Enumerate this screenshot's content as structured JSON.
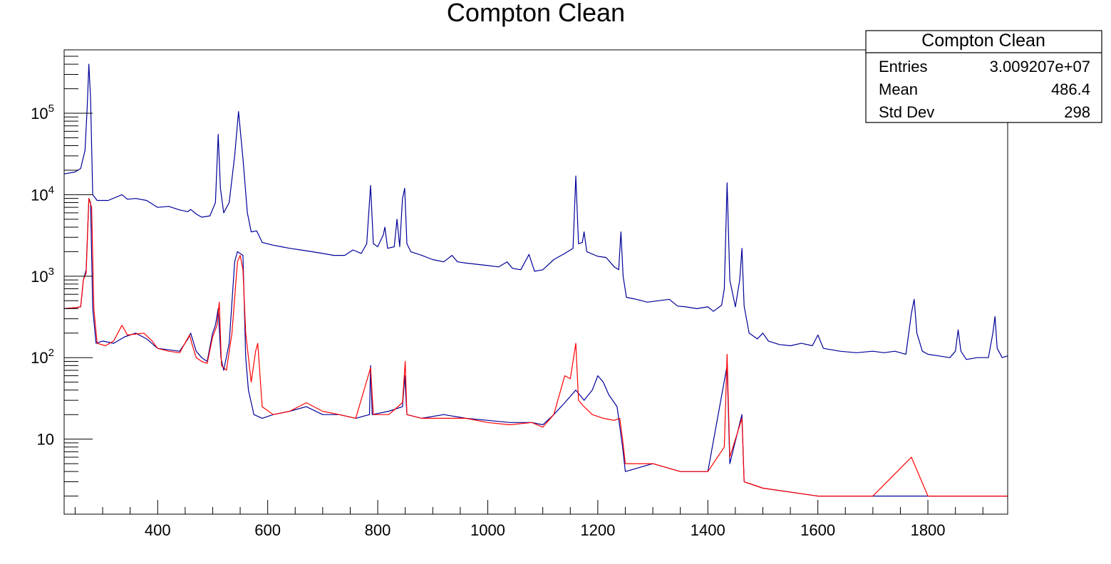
{
  "chart_data": {
    "type": "line",
    "title": "Compton Clean",
    "xlabel": "",
    "ylabel": "",
    "xlim": [
      230,
      1945
    ],
    "ylim": [
      1.2,
      600000
    ],
    "y_scale": "log",
    "x_ticks": [
      400,
      600,
      800,
      1000,
      1200,
      1400,
      1600,
      1800
    ],
    "x_tick_labels": [
      "400",
      "600",
      "800",
      "1000",
      "1200",
      "1400",
      "1600",
      "1800"
    ],
    "y_ticks": [
      10,
      100,
      1000,
      10000,
      100000
    ],
    "y_tick_labels": [
      {
        "base": "10",
        "exp": ""
      },
      {
        "base": "10",
        "exp": "2"
      },
      {
        "base": "10",
        "exp": "3"
      },
      {
        "base": "10",
        "exp": "4"
      },
      {
        "base": "10",
        "exp": "5"
      }
    ],
    "stats_box": {
      "title": "Compton Clean",
      "rows": [
        {
          "label": "Entries",
          "value": "3.009207e+07"
        },
        {
          "label": "Mean",
          "value": "486.4"
        },
        {
          "label": "Std Dev",
          "value": "298"
        }
      ]
    },
    "series": [
      {
        "color": "#000099",
        "points": [
          [
            230,
            18000
          ],
          [
            250,
            19000
          ],
          [
            260,
            21000
          ],
          [
            268,
            35000
          ],
          [
            272,
            120000
          ],
          [
            275,
            400000
          ],
          [
            278,
            150000
          ],
          [
            282,
            10000
          ],
          [
            290,
            8500
          ],
          [
            310,
            8500
          ],
          [
            335,
            10000
          ],
          [
            345,
            8800
          ],
          [
            360,
            9000
          ],
          [
            380,
            8500
          ],
          [
            400,
            7000
          ],
          [
            420,
            7200
          ],
          [
            440,
            6500
          ],
          [
            455,
            6200
          ],
          [
            460,
            6600
          ],
          [
            470,
            5800
          ],
          [
            480,
            5300
          ],
          [
            495,
            5500
          ],
          [
            505,
            8000
          ],
          [
            510,
            55000
          ],
          [
            514,
            12000
          ],
          [
            520,
            6000
          ],
          [
            530,
            8000
          ],
          [
            540,
            30000
          ],
          [
            547,
            105000
          ],
          [
            555,
            28000
          ],
          [
            563,
            6000
          ],
          [
            570,
            3500
          ],
          [
            580,
            3600
          ],
          [
            590,
            2600
          ],
          [
            610,
            2400
          ],
          [
            625,
            2300
          ],
          [
            640,
            2200
          ],
          [
            660,
            2100
          ],
          [
            680,
            2000
          ],
          [
            700,
            1900
          ],
          [
            720,
            1800
          ],
          [
            740,
            1800
          ],
          [
            755,
            2100
          ],
          [
            770,
            1900
          ],
          [
            780,
            2500
          ],
          [
            787,
            13000
          ],
          [
            792,
            2500
          ],
          [
            800,
            2300
          ],
          [
            810,
            3200
          ],
          [
            813,
            4000
          ],
          [
            818,
            2200
          ],
          [
            830,
            2300
          ],
          [
            835,
            5000
          ],
          [
            840,
            2300
          ],
          [
            845,
            9000
          ],
          [
            849,
            12000
          ],
          [
            853,
            2500
          ],
          [
            860,
            2000
          ],
          [
            880,
            1800
          ],
          [
            900,
            1600
          ],
          [
            920,
            1500
          ],
          [
            935,
            1800
          ],
          [
            945,
            1500
          ],
          [
            960,
            1450
          ],
          [
            980,
            1400
          ],
          [
            1000,
            1350
          ],
          [
            1020,
            1300
          ],
          [
            1035,
            1500
          ],
          [
            1045,
            1250
          ],
          [
            1060,
            1200
          ],
          [
            1075,
            1850
          ],
          [
            1085,
            1150
          ],
          [
            1100,
            1200
          ],
          [
            1120,
            1600
          ],
          [
            1140,
            1900
          ],
          [
            1155,
            2200
          ],
          [
            1160,
            17000
          ],
          [
            1165,
            2500
          ],
          [
            1172,
            2600
          ],
          [
            1175,
            3500
          ],
          [
            1180,
            2000
          ],
          [
            1200,
            1750
          ],
          [
            1215,
            1700
          ],
          [
            1230,
            1300
          ],
          [
            1238,
            1200
          ],
          [
            1242,
            3500
          ],
          [
            1246,
            1000
          ],
          [
            1252,
            550
          ],
          [
            1270,
            520
          ],
          [
            1290,
            480
          ],
          [
            1310,
            500
          ],
          [
            1330,
            520
          ],
          [
            1345,
            430
          ],
          [
            1360,
            420
          ],
          [
            1380,
            400
          ],
          [
            1400,
            420
          ],
          [
            1410,
            370
          ],
          [
            1425,
            440
          ],
          [
            1430,
            700
          ],
          [
            1435,
            14000
          ],
          [
            1440,
            900
          ],
          [
            1450,
            420
          ],
          [
            1458,
            900
          ],
          [
            1462,
            2200
          ],
          [
            1466,
            430
          ],
          [
            1475,
            200
          ],
          [
            1490,
            170
          ],
          [
            1500,
            200
          ],
          [
            1510,
            160
          ],
          [
            1530,
            145
          ],
          [
            1550,
            140
          ],
          [
            1570,
            150
          ],
          [
            1590,
            140
          ],
          [
            1600,
            190
          ],
          [
            1610,
            130
          ],
          [
            1640,
            120
          ],
          [
            1670,
            115
          ],
          [
            1700,
            120
          ],
          [
            1720,
            115
          ],
          [
            1740,
            120
          ],
          [
            1760,
            110
          ],
          [
            1770,
            350
          ],
          [
            1775,
            520
          ],
          [
            1780,
            200
          ],
          [
            1790,
            120
          ],
          [
            1800,
            110
          ],
          [
            1820,
            105
          ],
          [
            1840,
            100
          ],
          [
            1850,
            120
          ],
          [
            1855,
            220
          ],
          [
            1860,
            120
          ],
          [
            1870,
            95
          ],
          [
            1890,
            100
          ],
          [
            1910,
            100
          ],
          [
            1918,
            200
          ],
          [
            1922,
            320
          ],
          [
            1926,
            130
          ],
          [
            1935,
            100
          ],
          [
            1945,
            105
          ]
        ]
      },
      {
        "color": "#000099",
        "points": [
          [
            230,
            400
          ],
          [
            250,
            410
          ],
          [
            260,
            420
          ],
          [
            265,
            900
          ],
          [
            270,
            1200
          ],
          [
            275,
            9000
          ],
          [
            278,
            8000
          ],
          [
            282,
            400
          ],
          [
            288,
            150
          ],
          [
            300,
            160
          ],
          [
            320,
            150
          ],
          [
            340,
            180
          ],
          [
            360,
            200
          ],
          [
            380,
            170
          ],
          [
            400,
            130
          ],
          [
            420,
            125
          ],
          [
            440,
            120
          ],
          [
            455,
            170
          ],
          [
            460,
            200
          ],
          [
            470,
            120
          ],
          [
            480,
            100
          ],
          [
            490,
            90
          ],
          [
            500,
            200
          ],
          [
            505,
            250
          ],
          [
            510,
            400
          ],
          [
            515,
            100
          ],
          [
            520,
            70
          ],
          [
            530,
            150
          ],
          [
            540,
            1500
          ],
          [
            545,
            2000
          ],
          [
            555,
            1800
          ],
          [
            560,
            100
          ],
          [
            565,
            40
          ],
          [
            575,
            20
          ],
          [
            590,
            18
          ],
          [
            610,
            20
          ],
          [
            640,
            22
          ],
          [
            670,
            25
          ],
          [
            700,
            20
          ],
          [
            730,
            20
          ],
          [
            760,
            18
          ],
          [
            785,
            20
          ],
          [
            787,
            80
          ],
          [
            790,
            20
          ],
          [
            820,
            22
          ],
          [
            845,
            25
          ],
          [
            849,
            60
          ],
          [
            853,
            20
          ],
          [
            880,
            18
          ],
          [
            920,
            20
          ],
          [
            960,
            18
          ],
          [
            1000,
            17
          ],
          [
            1040,
            16
          ],
          [
            1080,
            16
          ],
          [
            1100,
            15
          ],
          [
            1120,
            20
          ],
          [
            1140,
            28
          ],
          [
            1160,
            40
          ],
          [
            1175,
            30
          ],
          [
            1190,
            40
          ],
          [
            1200,
            60
          ],
          [
            1210,
            50
          ],
          [
            1220,
            35
          ],
          [
            1235,
            25
          ],
          [
            1245,
            8
          ],
          [
            1250,
            4
          ],
          [
            1300,
            5
          ],
          [
            1350,
            4
          ],
          [
            1400,
            4
          ],
          [
            1435,
            80
          ],
          [
            1440,
            5
          ],
          [
            1462,
            20
          ],
          [
            1466,
            3
          ],
          [
            1500,
            2.5
          ],
          [
            1600,
            2
          ],
          [
            1700,
            2
          ],
          [
            1800,
            2
          ],
          [
            1900,
            2
          ],
          [
            1945,
            2
          ]
        ]
      },
      {
        "color": "#ff0000",
        "points": [
          [
            230,
            400
          ],
          [
            250,
            410
          ],
          [
            260,
            420
          ],
          [
            265,
            900
          ],
          [
            270,
            1100
          ],
          [
            275,
            9000
          ],
          [
            280,
            7000
          ],
          [
            284,
            400
          ],
          [
            290,
            150
          ],
          [
            305,
            140
          ],
          [
            320,
            160
          ],
          [
            335,
            250
          ],
          [
            345,
            190
          ],
          [
            360,
            195
          ],
          [
            375,
            200
          ],
          [
            390,
            160
          ],
          [
            400,
            130
          ],
          [
            420,
            120
          ],
          [
            440,
            115
          ],
          [
            458,
            190
          ],
          [
            462,
            150
          ],
          [
            470,
            100
          ],
          [
            480,
            90
          ],
          [
            490,
            85
          ],
          [
            500,
            180
          ],
          [
            508,
            250
          ],
          [
            512,
            480
          ],
          [
            516,
            80
          ],
          [
            525,
            70
          ],
          [
            535,
            200
          ],
          [
            545,
            1500
          ],
          [
            550,
            1800
          ],
          [
            555,
            1200
          ],
          [
            560,
            200
          ],
          [
            570,
            50
          ],
          [
            578,
            120
          ],
          [
            582,
            150
          ],
          [
            590,
            25
          ],
          [
            610,
            20
          ],
          [
            640,
            22
          ],
          [
            670,
            28
          ],
          [
            700,
            22
          ],
          [
            730,
            20
          ],
          [
            760,
            18
          ],
          [
            787,
            75
          ],
          [
            792,
            20
          ],
          [
            820,
            20
          ],
          [
            845,
            28
          ],
          [
            850,
            90
          ],
          [
            853,
            20
          ],
          [
            880,
            18
          ],
          [
            920,
            18
          ],
          [
            960,
            18
          ],
          [
            1000,
            16
          ],
          [
            1040,
            15
          ],
          [
            1080,
            16
          ],
          [
            1100,
            14
          ],
          [
            1120,
            20
          ],
          [
            1140,
            60
          ],
          [
            1150,
            55
          ],
          [
            1160,
            150
          ],
          [
            1165,
            30
          ],
          [
            1175,
            25
          ],
          [
            1190,
            20
          ],
          [
            1210,
            18
          ],
          [
            1230,
            17
          ],
          [
            1240,
            18
          ],
          [
            1245,
            10
          ],
          [
            1250,
            5
          ],
          [
            1300,
            5
          ],
          [
            1350,
            4
          ],
          [
            1400,
            4
          ],
          [
            1430,
            8
          ],
          [
            1435,
            110
          ],
          [
            1440,
            6
          ],
          [
            1462,
            18
          ],
          [
            1466,
            3
          ],
          [
            1500,
            2.5
          ],
          [
            1600,
            2
          ],
          [
            1700,
            2
          ],
          [
            1770,
            6
          ],
          [
            1800,
            2
          ],
          [
            1900,
            2
          ],
          [
            1945,
            2
          ]
        ]
      }
    ]
  }
}
